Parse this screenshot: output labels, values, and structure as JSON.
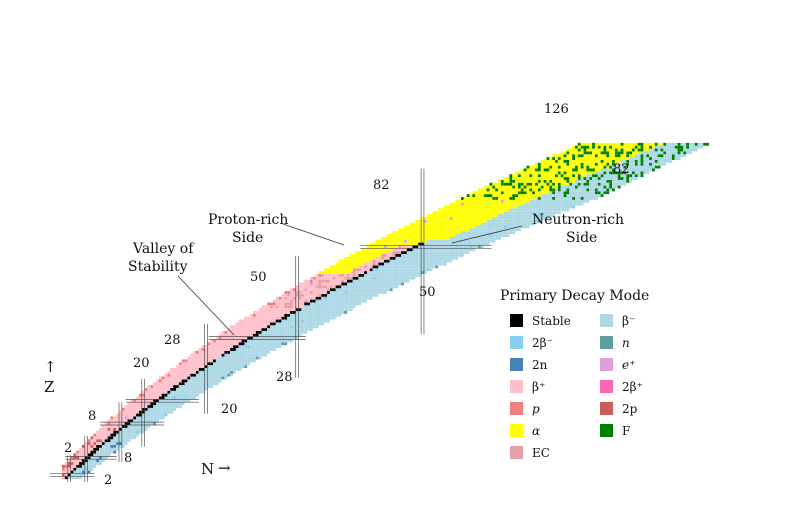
{
  "colors": {
    "stable": "#000000",
    "beta_minus": "#add8e6",
    "double_beta_minus": "#87cef0",
    "two_n": "#4682b4",
    "neutron": "#5f9ea0",
    "beta_plus": "#ffc0cb",
    "positron": "#dda0dd",
    "proton": "#f08080",
    "double_beta_plus": "#ff69b4",
    "alpha": "#ffff00",
    "two_p": "#cd5c5c",
    "ec": "#e8a0a8",
    "fission": "#008000"
  },
  "legend": {
    "title": "Primary Decay Mode",
    "items": [
      {
        "label": "Stable",
        "color": "#000000",
        "italic": false
      },
      {
        "label": "β⁻",
        "color": "#add8e6",
        "italic": false
      },
      {
        "label": "2β⁻",
        "color": "#87cef0",
        "italic": false
      },
      {
        "label": "n",
        "color": "#5f9ea0",
        "italic": true
      },
      {
        "label": "2n",
        "color": "#4682b4",
        "italic": false
      },
      {
        "label": "e⁺",
        "color": "#dda0dd",
        "italic": true
      },
      {
        "label": "β⁺",
        "color": "#ffc0cb",
        "italic": false
      },
      {
        "label": "2β⁺",
        "color": "#ff69b4",
        "italic": false
      },
      {
        "label": "p",
        "color": "#f08080",
        "italic": true
      },
      {
        "label": "2p",
        "color": "#cd5c5c",
        "italic": false
      },
      {
        "label": "α",
        "color": "#ffff00",
        "italic": true
      },
      {
        "label": "F",
        "color": "#008000",
        "italic": false
      },
      {
        "label": "EC",
        "color": "#e8a0a8",
        "italic": false
      }
    ]
  },
  "annotations": {
    "proton_rich": [
      "Proton-rich",
      "Side"
    ],
    "neutron_rich": [
      "Neutron-rich",
      "Side"
    ],
    "valley": [
      "Valley of",
      "Stability"
    ]
  },
  "axes": {
    "z_label": "Z",
    "n_label": "N",
    "up_arrow": "↑",
    "right_arrow": "→"
  },
  "magic_numbers": {
    "proton": [
      "2",
      "8",
      "20",
      "28",
      "50",
      "82"
    ],
    "neutron": [
      "2",
      "8",
      "20",
      "28",
      "50",
      "82",
      "126"
    ]
  }
}
